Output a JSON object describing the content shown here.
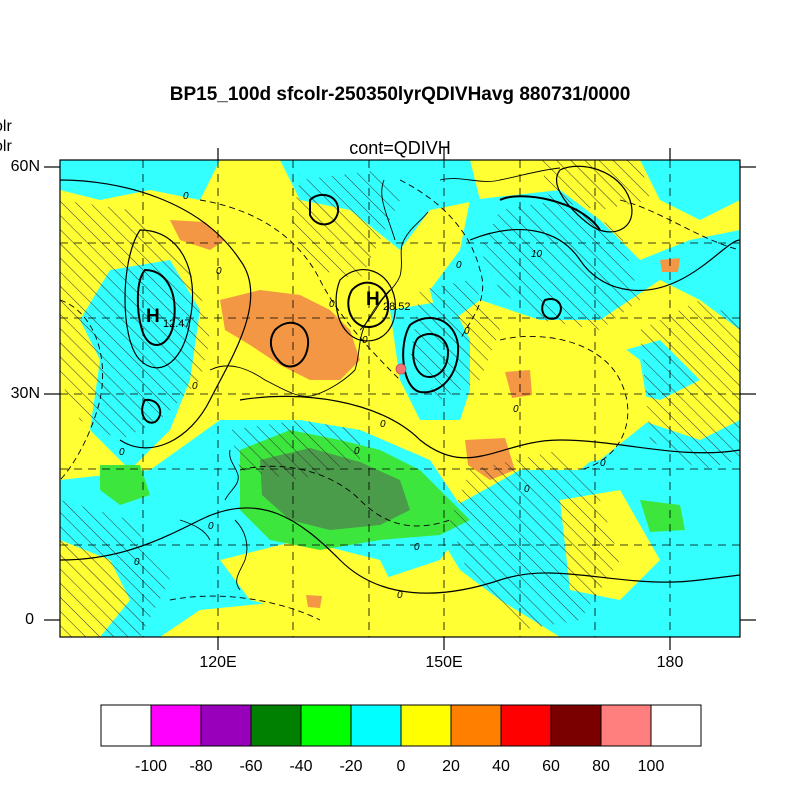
{
  "title": "BP15_100d sfcolr-250350lyrQDIVHavg  880731/0000",
  "subtitle": "cont=QDIVH",
  "left_labels": [
    "olr",
    "olr"
  ],
  "map": {
    "lat_labels": [
      "60N",
      "30N",
      "0"
    ],
    "lon_labels": [
      "120E",
      "150E",
      "180"
    ],
    "lat_range": [
      -2,
      61
    ],
    "lon_range": [
      100,
      190
    ],
    "highs": [
      {
        "label": "H",
        "value": "12.47"
      },
      {
        "label": "H",
        "value": "28.52"
      }
    ],
    "contour_labels": [
      "0",
      "0",
      "0",
      "0",
      "0",
      "0",
      "0",
      "0",
      "0",
      "0",
      "0",
      "0",
      "0",
      "0",
      "10",
      "0",
      "0",
      "0"
    ],
    "colors": {
      "ocean_yellow": "#ffff33",
      "cyan": "#33ffff",
      "orange": "#f59a4a",
      "light_orange": "#f39745",
      "green": "#3de63d",
      "dark_green": "#4a9c4a",
      "marker": "#f27474"
    }
  },
  "colorbar": {
    "levels": [
      "-100",
      "-80",
      "-60",
      "-40",
      "-20",
      "0",
      "20",
      "40",
      "60",
      "80",
      "100"
    ],
    "colors": [
      "#ffffff",
      "#ff00ff",
      "#9900bb",
      "#008000",
      "#00ff00",
      "#00ffff",
      "#ffff00",
      "#ff8000",
      "#ff0000",
      "#7a0000",
      "#ff7f7f",
      "#ffffff"
    ]
  }
}
